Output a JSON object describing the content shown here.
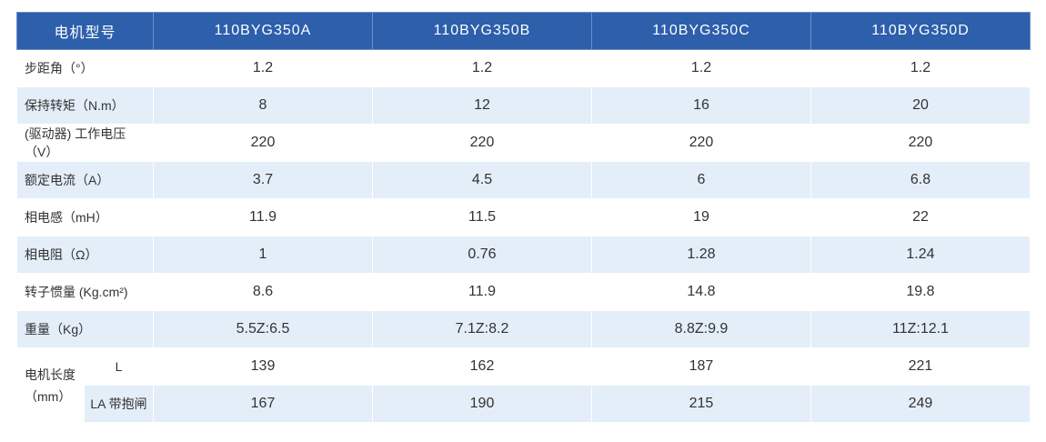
{
  "table": {
    "header": [
      "电机型号",
      "110BYG350A",
      "110BYG350B",
      "110BYG350C",
      "110BYG350D"
    ],
    "rows": [
      {
        "label": "步距角（°）",
        "values": [
          1.2,
          1.2,
          1.2,
          1.2
        ]
      },
      {
        "label": "保持转矩（N.m）",
        "values": [
          8,
          12,
          16,
          20
        ]
      },
      {
        "label": "(驱动器) 工作电压（V）",
        "values": [
          220,
          220,
          220,
          220
        ]
      },
      {
        "label": "额定电流（A）",
        "values": [
          3.7,
          4.5,
          6,
          6.8
        ]
      },
      {
        "label": "相电感（mH）",
        "values": [
          11.9,
          11.5,
          19,
          22
        ]
      },
      {
        "label": "相电阻（Ω）",
        "values": [
          1,
          0.76,
          1.28,
          1.24
        ]
      },
      {
        "label": "转子惯量 (Kg.cm²)",
        "values": [
          8.6,
          11.9,
          14.8,
          19.8
        ]
      },
      {
        "label": "重量（Kg）",
        "values": [
          [
            5.5,
            "Z:6.5"
          ],
          [
            7.1,
            "Z:8.2"
          ],
          [
            8.8,
            "Z:9.9"
          ],
          [
            11,
            "Z:12.1"
          ]
        ]
      }
    ],
    "length": {
      "label": "电机长度（mm）",
      "rows": [
        {
          "label": "L",
          "values": [
            139,
            162,
            187,
            221
          ]
        },
        {
          "label": "LA 带抱闸",
          "values": [
            167,
            190,
            215,
            249
          ]
        }
      ]
    }
  }
}
